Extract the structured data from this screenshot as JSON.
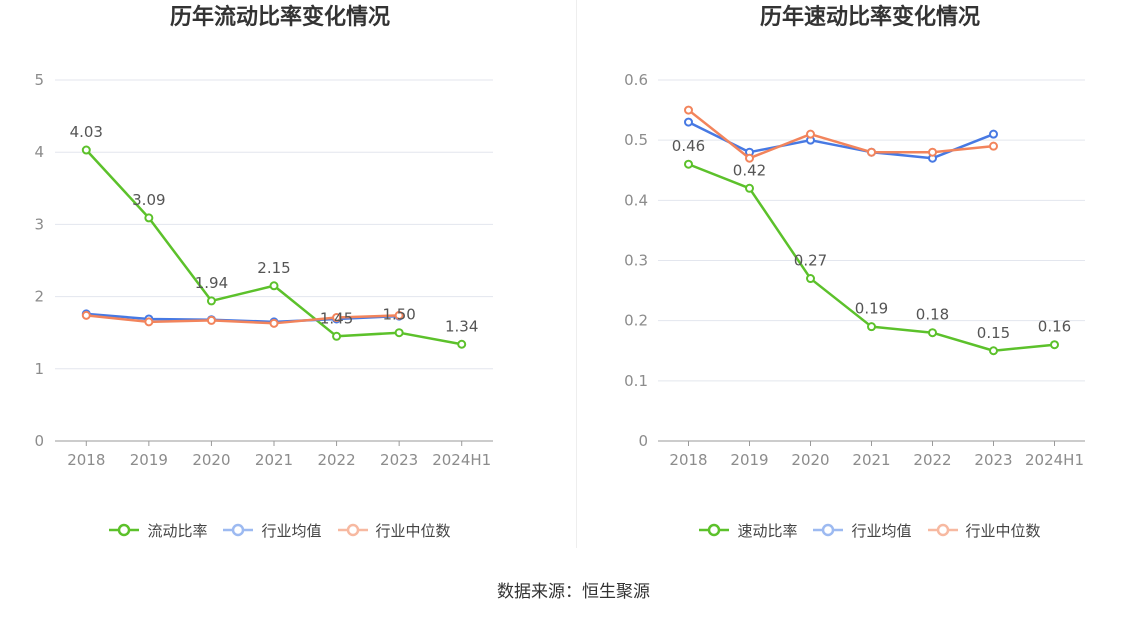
{
  "footer": {
    "source": "数据来源：恒生聚源"
  },
  "chart_data": [
    {
      "type": "line",
      "title": "历年流动比率变化情况",
      "categories": [
        "2018",
        "2019",
        "2020",
        "2021",
        "2022",
        "2023",
        "2024H1"
      ],
      "yticks": [
        0,
        1,
        2,
        3,
        4,
        5
      ],
      "ylim": [
        0,
        5
      ],
      "grid": true,
      "legend": "bottom",
      "series": [
        {
          "name": "流动比率",
          "color": "#5cc12b",
          "data_labels": true,
          "values": [
            4.03,
            3.09,
            1.94,
            2.15,
            1.45,
            1.5,
            1.34
          ]
        },
        {
          "name": "行业均值",
          "color": "#4779e3",
          "data_labels": false,
          "values": [
            1.76,
            1.69,
            1.68,
            1.65,
            1.69,
            1.73,
            null
          ]
        },
        {
          "name": "行业中位数",
          "color": "#f2845c",
          "data_labels": false,
          "values": [
            1.74,
            1.65,
            1.67,
            1.63,
            1.71,
            1.74,
            null
          ]
        }
      ]
    },
    {
      "type": "line",
      "title": "历年速动比率变化情况",
      "categories": [
        "2018",
        "2019",
        "2020",
        "2021",
        "2022",
        "2023",
        "2024H1"
      ],
      "yticks": [
        0,
        0.1,
        0.2,
        0.3,
        0.4,
        0.5,
        0.6
      ],
      "ylim": [
        0,
        0.6
      ],
      "grid": true,
      "legend": "bottom",
      "series": [
        {
          "name": "速动比率",
          "color": "#5cc12b",
          "data_labels": true,
          "values": [
            0.46,
            0.42,
            0.27,
            0.19,
            0.18,
            0.15,
            0.16
          ]
        },
        {
          "name": "行业均值",
          "color": "#4779e3",
          "data_labels": false,
          "values": [
            0.53,
            0.48,
            0.5,
            0.48,
            0.47,
            0.51,
            null
          ]
        },
        {
          "name": "行业中位数",
          "color": "#f2845c",
          "data_labels": false,
          "values": [
            0.55,
            0.47,
            0.51,
            0.48,
            0.48,
            0.49,
            null
          ]
        }
      ]
    }
  ]
}
